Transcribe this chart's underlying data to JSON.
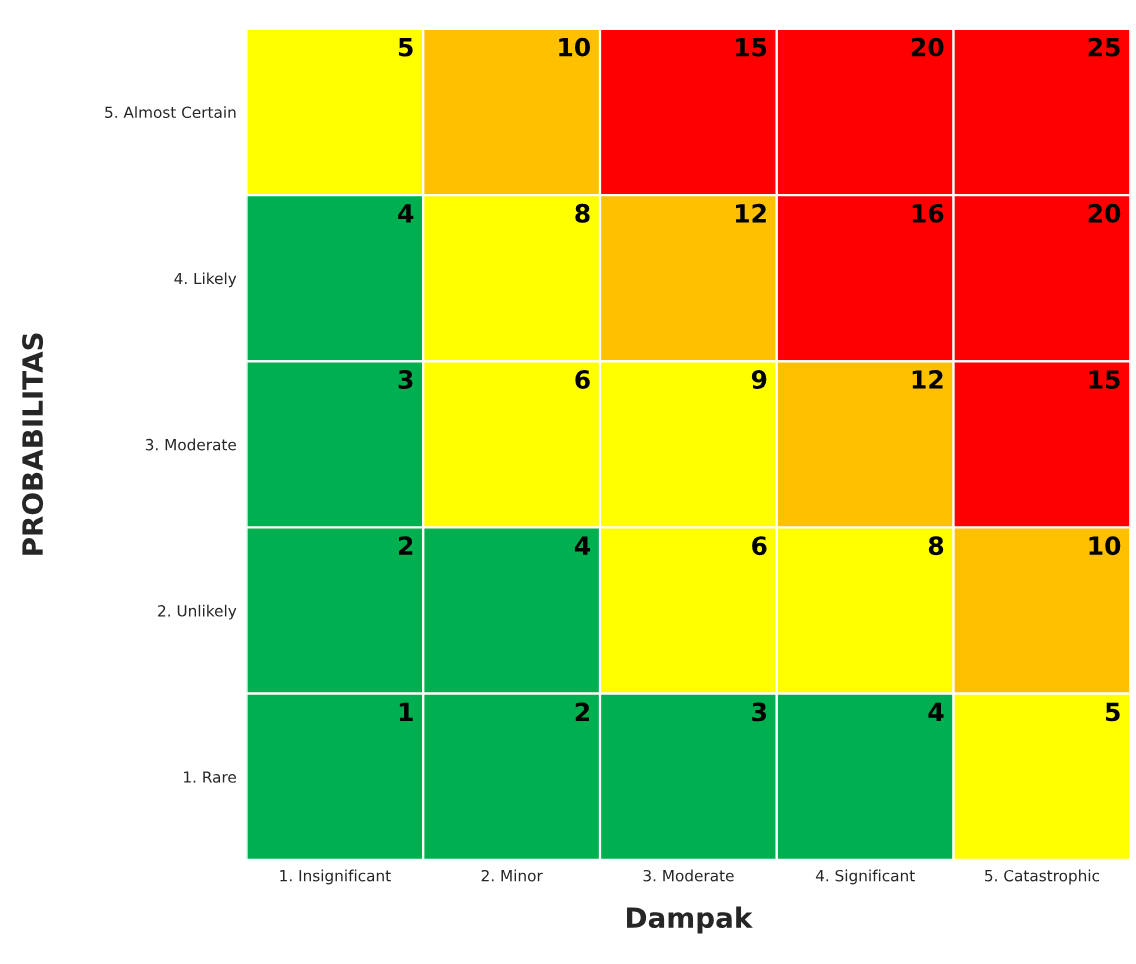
{
  "chart_data": {
    "type": "heatmap",
    "xlabel": "Dampak",
    "ylabel": "PROBABILITAS",
    "categories": [
      "1. Insignificant",
      "2. Minor",
      "3. Moderate",
      "4. Significant",
      "5. Catastrophic"
    ],
    "y_categories": [
      "5. Almost Certain",
      "4. Likely",
      "3. Moderate",
      "2. Unlikely",
      "1. Rare"
    ],
    "cells": [
      [
        5,
        10,
        15,
        20,
        25
      ],
      [
        4,
        8,
        12,
        16,
        20
      ],
      [
        3,
        6,
        9,
        12,
        15
      ],
      [
        2,
        4,
        6,
        8,
        10
      ],
      [
        1,
        2,
        3,
        4,
        5
      ]
    ],
    "colors": [
      [
        "#ffff00",
        "#ffc000",
        "#ff0000",
        "#ff0000",
        "#ff0000"
      ],
      [
        "#00b050",
        "#ffff00",
        "#ffc000",
        "#ff0000",
        "#ff0000"
      ],
      [
        "#00b050",
        "#ffff00",
        "#ffff00",
        "#ffc000",
        "#ff0000"
      ],
      [
        "#00b050",
        "#00b050",
        "#ffff00",
        "#ffff00",
        "#ffc000"
      ],
      [
        "#00b050",
        "#00b050",
        "#00b050",
        "#00b050",
        "#ffff00"
      ]
    ],
    "data_labels": true
  }
}
